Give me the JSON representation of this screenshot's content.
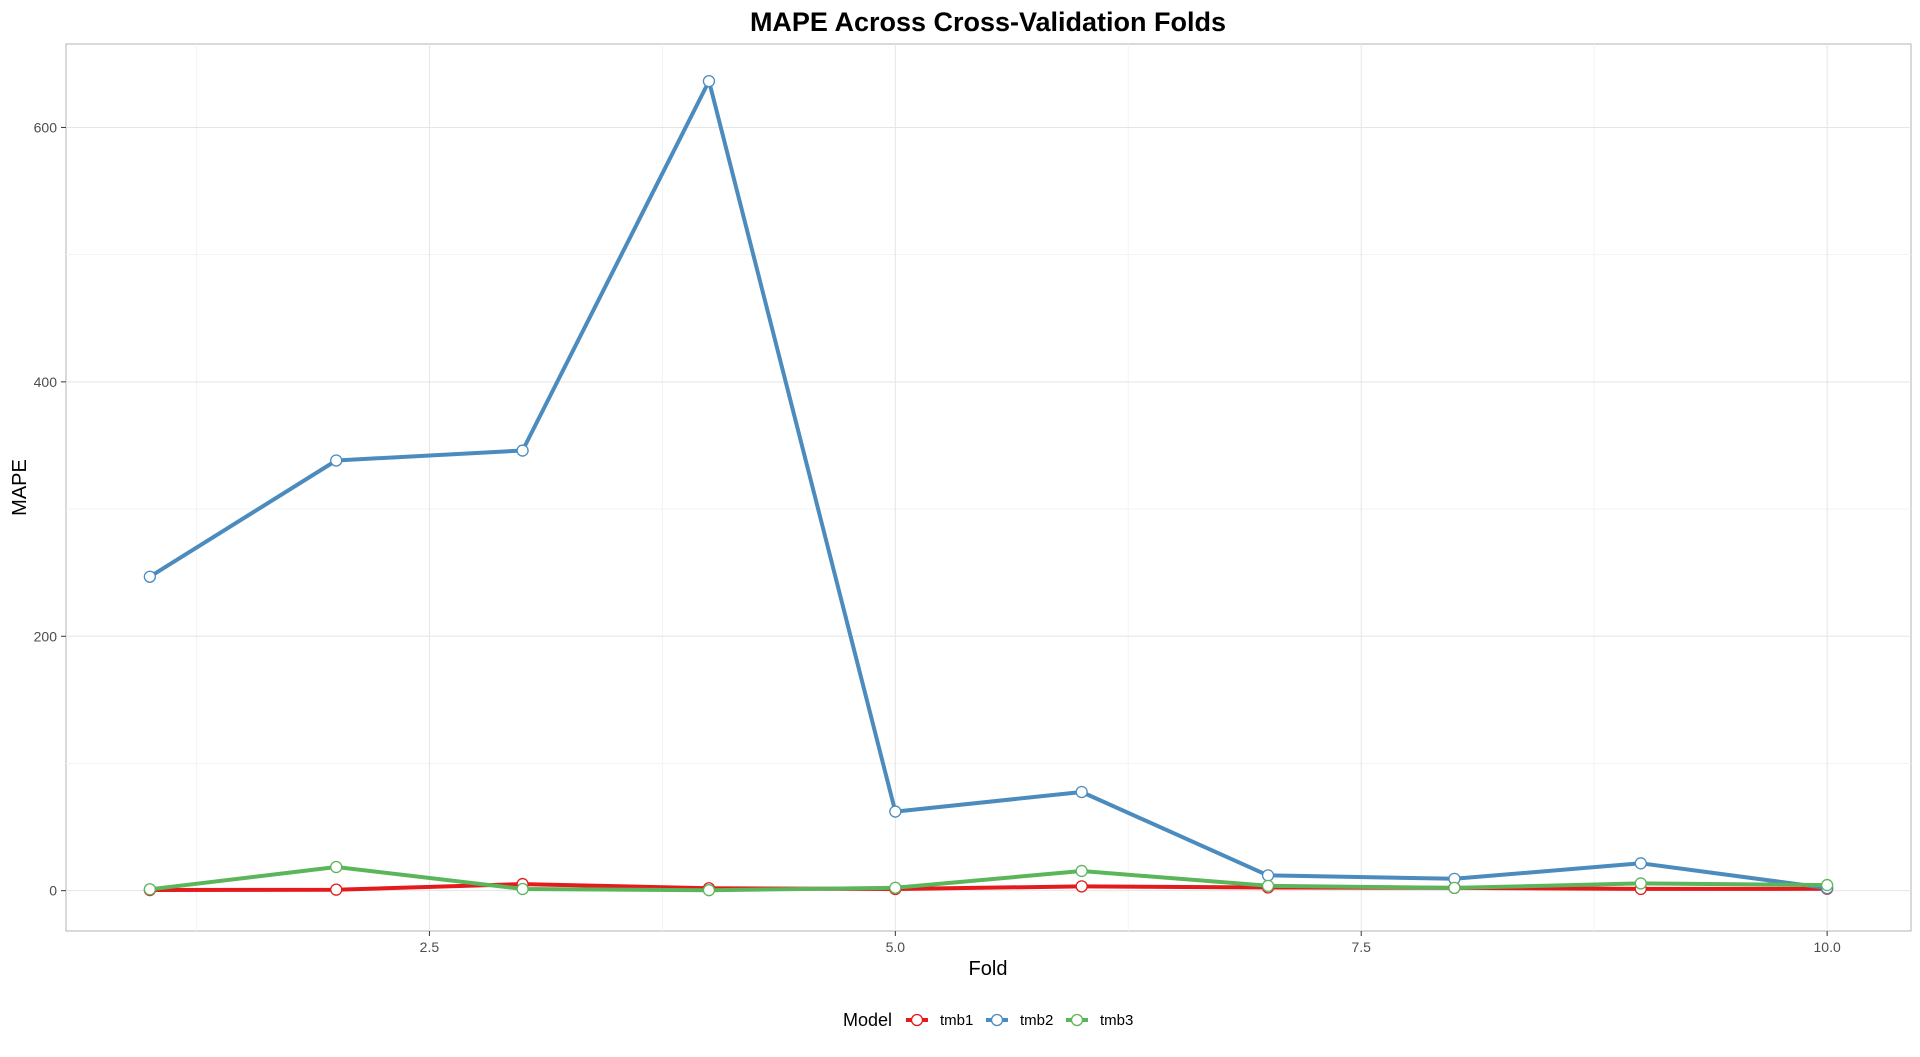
{
  "chart_data": {
    "type": "line",
    "title": "MAPE Across Cross-Validation Folds",
    "xlabel": "Fold",
    "ylabel": "MAPE",
    "xlim": [
      0.55,
      10.45
    ],
    "ylim": [
      -31.7,
      665.6
    ],
    "x_ticks": [
      2.5,
      5.0,
      7.5,
      10.0
    ],
    "x_tick_labels": [
      "2.5",
      "5.0",
      "7.5",
      "10.0"
    ],
    "y_ticks": [
      0,
      200,
      400,
      600
    ],
    "y_tick_labels": [
      "0",
      "200",
      "400",
      "600"
    ],
    "grid": true,
    "legend_title": "Model",
    "legend_position": "bottom",
    "x": [
      1,
      2,
      3,
      4,
      5,
      6,
      7,
      8,
      9,
      10
    ],
    "series": [
      {
        "name": "tmb1",
        "color": "#E41A1C",
        "values": [
          0.5,
          0.8,
          5.2,
          1.9,
          1.3,
          3.4,
          2.5,
          2.2,
          1.4,
          1.5
        ]
      },
      {
        "name": "tmb2",
        "color": "#4B8BBE",
        "values": [
          246.8,
          338.2,
          346.0,
          636.4,
          62.2,
          77.6,
          12.0,
          9.3,
          21.5,
          2.0
        ]
      },
      {
        "name": "tmb3",
        "color": "#5BB55A",
        "values": [
          1.1,
          18.6,
          1.3,
          0.4,
          2.3,
          15.5,
          3.8,
          2.2,
          5.7,
          4.4
        ]
      }
    ]
  }
}
